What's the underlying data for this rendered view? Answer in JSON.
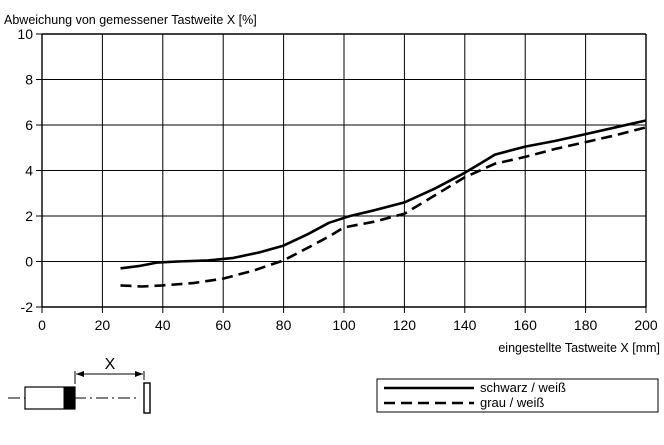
{
  "chart_data": {
    "type": "line",
    "title": "",
    "ylabel": "Abweichung von gemessener Tastweite X [%]",
    "xlabel": "eingestellte Tastweite X [mm]",
    "xlim": [
      0,
      200
    ],
    "ylim": [
      -2,
      10
    ],
    "xticks": [
      0,
      20,
      40,
      60,
      80,
      100,
      120,
      140,
      160,
      180,
      200
    ],
    "yticks": [
      -2,
      0,
      2,
      4,
      6,
      8,
      10
    ],
    "xtick_labels": [
      "0",
      "20",
      "40",
      "60",
      "80",
      "100",
      "120",
      "140",
      "160",
      "180",
      "200"
    ],
    "ytick_labels": [
      "-2",
      "0",
      "2",
      "4",
      "6",
      "8",
      "10"
    ],
    "grid": true,
    "legend_position": "bottom-right",
    "series": [
      {
        "name": "schwarz / weiß",
        "style": "solid",
        "color": "#000000",
        "x": [
          26,
          32,
          38,
          45,
          55,
          63,
          72,
          80,
          88,
          95,
          102,
          110,
          120,
          130,
          140,
          145,
          150,
          160,
          170,
          180,
          190,
          200
        ],
        "y": [
          -0.3,
          -0.2,
          -0.05,
          0.0,
          0.05,
          0.15,
          0.4,
          0.7,
          1.2,
          1.7,
          2.0,
          2.25,
          2.6,
          3.2,
          3.9,
          4.3,
          4.7,
          5.05,
          5.3,
          5.6,
          5.9,
          6.2
        ]
      },
      {
        "name": "grau / weiß",
        "style": "dashed",
        "color": "#000000",
        "x": [
          26,
          33,
          40,
          50,
          60,
          70,
          80,
          88,
          95,
          100,
          110,
          120,
          130,
          140,
          150,
          160,
          170,
          180,
          190,
          200
        ],
        "y": [
          -1.05,
          -1.1,
          -1.05,
          -0.95,
          -0.75,
          -0.4,
          0.05,
          0.6,
          1.1,
          1.5,
          1.75,
          2.1,
          2.9,
          3.7,
          4.3,
          4.6,
          4.95,
          5.25,
          5.55,
          5.9
        ]
      }
    ],
    "diagram": {
      "distance_label": "X"
    }
  }
}
